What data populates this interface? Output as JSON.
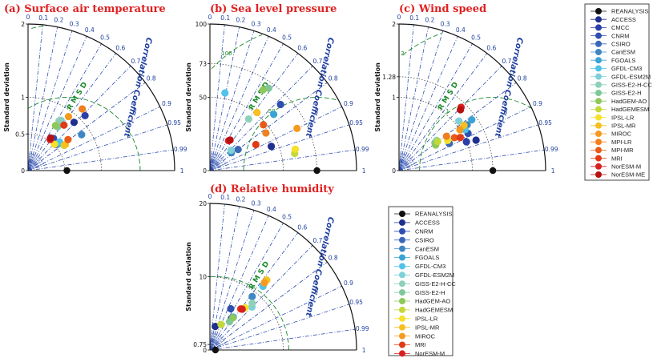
{
  "rmsd_label": "R M S D",
  "corr_label": "Correlation Coefficient",
  "y_label": "Standard deviation",
  "legend1": [
    {
      "name": "REANALYSIS",
      "color": "#111111"
    },
    {
      "name": "ACCESS",
      "color": "#1f2f8f"
    },
    {
      "name": "CMCC",
      "color": "#2a3fa8"
    },
    {
      "name": "CNRM",
      "color": "#2f4fb0"
    },
    {
      "name": "CSIRO",
      "color": "#3a67b8"
    },
    {
      "name": "CanESM",
      "color": "#3f86c4"
    },
    {
      "name": "FGOALS",
      "color": "#3aa3d6"
    },
    {
      "name": "GFDL-CM3",
      "color": "#4fc3e8"
    },
    {
      "name": "GFDL-ESM2M",
      "color": "#7fd0d8"
    },
    {
      "name": "GISS-E2-H-CC",
      "color": "#8fd0b8"
    },
    {
      "name": "GISS-E2-H",
      "color": "#7fc79a"
    },
    {
      "name": "HadGEM-AO",
      "color": "#8ec85a"
    },
    {
      "name": "HadGEMESM",
      "color": "#c4d83a"
    },
    {
      "name": "IPSL-LR",
      "color": "#f5e02a"
    },
    {
      "name": "IPSL-MR",
      "color": "#f7c020"
    },
    {
      "name": "MIROC",
      "color": "#f59a20"
    },
    {
      "name": "MPI-LR",
      "color": "#f08020"
    },
    {
      "name": "MPI-MR",
      "color": "#e85a18"
    },
    {
      "name": "MRI",
      "color": "#e03a18"
    },
    {
      "name": "NorESM-M",
      "color": "#d82020"
    },
    {
      "name": "NorESM-ME",
      "color": "#b81010"
    }
  ],
  "legend2": [
    {
      "name": "REANALYSIS",
      "color": "#111111"
    },
    {
      "name": "ACCESS",
      "color": "#1f2f8f"
    },
    {
      "name": "CNRM",
      "color": "#2f4fb0"
    },
    {
      "name": "CSIRO",
      "color": "#3a67b8"
    },
    {
      "name": "CanESM",
      "color": "#3f86c4"
    },
    {
      "name": "FGOALS",
      "color": "#3aa3d6"
    },
    {
      "name": "GFDL-CM3",
      "color": "#4fc3e8"
    },
    {
      "name": "GFDL-ESM2M",
      "color": "#7fd0d8"
    },
    {
      "name": "GISS-E2-H-CC",
      "color": "#8fd0b8"
    },
    {
      "name": "GISS-E2-H",
      "color": "#7fc79a"
    },
    {
      "name": "HadGEM-AO",
      "color": "#8ec85a"
    },
    {
      "name": "HadGEMESM",
      "color": "#c4d83a"
    },
    {
      "name": "IPSL-LR",
      "color": "#f5e02a"
    },
    {
      "name": "IPSL-MR",
      "color": "#f7c020"
    },
    {
      "name": "MIROC",
      "color": "#f59a20"
    },
    {
      "name": "MRI",
      "color": "#e03a18"
    },
    {
      "name": "NorESM-M",
      "color": "#d82020"
    }
  ],
  "chart_data": [
    {
      "type": "scatter",
      "title": "(a) Surface air temperature",
      "sd_max": 2,
      "sd_ticks": [
        "0",
        "0.5",
        "1",
        "2"
      ],
      "sd_tick_values": [
        0,
        0.5,
        1,
        2
      ],
      "corr_ticks": [
        0,
        0.1,
        0.2,
        0.3,
        0.4,
        0.5,
        0.6,
        0.7,
        0.8,
        0.9,
        0.95,
        0.99,
        1
      ],
      "ref_sd": 0.53,
      "rmsd_labels": [
        "1",
        "2"
      ],
      "rmsd_values": [
        1,
        2
      ],
      "points": [
        {
          "name": "ACCESS",
          "sd": 0.91,
          "r": 0.69
        },
        {
          "name": "CMCC",
          "sd": 1.08,
          "r": 0.72
        },
        {
          "name": "CNRM",
          "sd": 0.56,
          "r": 0.62
        },
        {
          "name": "CSIRO",
          "sd": 0.52,
          "r": 0.73
        },
        {
          "name": "CanESM",
          "sd": 0.88,
          "r": 0.83
        },
        {
          "name": "FGOALS",
          "sd": 0.56,
          "r": 0.75
        },
        {
          "name": "GFDL-CM3",
          "sd": 0.58,
          "r": 0.74
        },
        {
          "name": "GFDL-ESM2M",
          "sd": 0.82,
          "r": 0.55
        },
        {
          "name": "GISS-E2-H-CC",
          "sd": 0.8,
          "r": 0.53
        },
        {
          "name": "GISS-E2-H",
          "sd": 0.72,
          "r": 0.56
        },
        {
          "name": "HadGEM-AO",
          "sd": 0.72,
          "r": 0.52
        },
        {
          "name": "HadGEMESM",
          "sd": 0.6,
          "r": 0.82
        },
        {
          "name": "IPSL-LR",
          "sd": 0.51,
          "r": 0.71
        },
        {
          "name": "IPSL-MR",
          "sd": 0.62,
          "r": 0.82
        },
        {
          "name": "MIROC",
          "sd": 0.92,
          "r": 0.6
        },
        {
          "name": "MPI-LR",
          "sd": 1.12,
          "r": 0.66
        },
        {
          "name": "MPI-MR",
          "sd": 0.69,
          "r": 0.79
        },
        {
          "name": "MRI",
          "sd": 0.79,
          "r": 0.62
        },
        {
          "name": "NorESM-M",
          "sd": 0.52,
          "r": 0.58
        },
        {
          "name": "NorESM-ME",
          "sd": 0.54,
          "r": 0.57
        }
      ]
    },
    {
      "type": "scatter",
      "title": "(b) Sea level pressure",
      "sd_max": 100,
      "sd_ticks": [
        "0",
        "50",
        "73",
        "100"
      ],
      "sd_tick_values": [
        0,
        50,
        73,
        100
      ],
      "corr_ticks": [
        0,
        0.1,
        0.2,
        0.3,
        0.4,
        0.5,
        0.6,
        0.7,
        0.8,
        0.9,
        0.95,
        0.99,
        1
      ],
      "ref_sd": 73,
      "rmsd_labels": [
        "50",
        "100"
      ],
      "rmsd_values": [
        50,
        100
      ],
      "points": [
        {
          "name": "ACCESS",
          "sd": 45,
          "r": 0.93
        },
        {
          "name": "CNRM",
          "sd": 66,
          "r": 0.73
        },
        {
          "name": "CSIRO",
          "sd": 24,
          "r": 0.8
        },
        {
          "name": "CanESM",
          "sd": 19,
          "r": 0.77
        },
        {
          "name": "FGOALS",
          "sd": 58,
          "r": 0.75
        },
        {
          "name": "GFDL-CM3",
          "sd": 54,
          "r": 0.19
        },
        {
          "name": "GFDL-ESM2M",
          "sd": 20,
          "r": 0.72
        },
        {
          "name": "GISS-E2-H-CC",
          "sd": 44,
          "r": 0.6
        },
        {
          "name": "GISS-E2-H",
          "sd": 69,
          "r": 0.58
        },
        {
          "name": "HadGEM-AO",
          "sd": 66,
          "r": 0.55
        },
        {
          "name": "HadGEMESM",
          "sd": 59,
          "r": 0.98
        },
        {
          "name": "IPSL-LR",
          "sd": 60,
          "r": 0.97
        },
        {
          "name": "IPSL-MR",
          "sd": 51,
          "r": 0.63
        },
        {
          "name": "MIROC",
          "sd": 66,
          "r": 0.9
        },
        {
          "name": "MPI-LR",
          "sd": 46,
          "r": 0.83
        },
        {
          "name": "MPI-MR",
          "sd": 48,
          "r": 0.76
        },
        {
          "name": "MRI",
          "sd": 36,
          "r": 0.87
        },
        {
          "name": "NorESM-M",
          "sd": 24,
          "r": 0.53
        },
        {
          "name": "NorESM-ME",
          "sd": 25,
          "r": 0.55
        }
      ]
    },
    {
      "type": "scatter",
      "title": "(c) Wind speed",
      "sd_max": 2,
      "sd_ticks": [
        "0",
        "1",
        "1.28",
        "2"
      ],
      "sd_tick_values": [
        0,
        1,
        1.28,
        2
      ],
      "corr_ticks": [
        0,
        0.1,
        0.2,
        0.3,
        0.4,
        0.5,
        0.6,
        0.7,
        0.8,
        0.9,
        0.95,
        0.99,
        1
      ],
      "ref_sd": 1.28,
      "rmsd_labels": [
        "1",
        "2"
      ],
      "rmsd_values": [
        1,
        2
      ],
      "points": [
        {
          "name": "ACCESS",
          "sd": 1.13,
          "r": 0.93
        },
        {
          "name": "CMCC",
          "sd": 1.0,
          "r": 0.92
        },
        {
          "name": "CNRM",
          "sd": 1.07,
          "r": 0.88
        },
        {
          "name": "CSIRO",
          "sd": 0.78,
          "r": 0.88
        },
        {
          "name": "CanESM",
          "sd": 1.12,
          "r": 0.83
        },
        {
          "name": "FGOALS",
          "sd": 1.21,
          "r": 0.82
        },
        {
          "name": "GFDL-CM3",
          "sd": 1.06,
          "r": 0.85
        },
        {
          "name": "GFDL-ESM2M",
          "sd": 1.06,
          "r": 0.77
        },
        {
          "name": "GISS-E2-H-CC",
          "sd": 0.66,
          "r": 0.78
        },
        {
          "name": "GISS-E2-H",
          "sd": 0.62,
          "r": 0.79
        },
        {
          "name": "HadGEM-AO",
          "sd": 0.61,
          "r": 0.82
        },
        {
          "name": "HadGEMESM",
          "sd": 0.66,
          "r": 0.8
        },
        {
          "name": "IPSL-LR",
          "sd": 0.78,
          "r": 0.85
        },
        {
          "name": "IPSL-MR",
          "sd": 1.08,
          "r": 0.82
        },
        {
          "name": "MIROC",
          "sd": 1.0,
          "r": 0.83
        },
        {
          "name": "MPI-LR",
          "sd": 0.8,
          "r": 0.81
        },
        {
          "name": "MPI-MR",
          "sd": 0.88,
          "r": 0.86
        },
        {
          "name": "MRI",
          "sd": 0.95,
          "r": 0.88
        },
        {
          "name": "NorESM-M",
          "sd": 1.21,
          "r": 0.7
        },
        {
          "name": "NorESM-ME",
          "sd": 1.18,
          "r": 0.71
        }
      ]
    },
    {
      "type": "scatter",
      "title": "(d) Relative humidity",
      "sd_max": 20,
      "sd_ticks": [
        "0",
        "0.75",
        "10",
        "20"
      ],
      "sd_tick_values": [
        0,
        0.75,
        10,
        20
      ],
      "corr_ticks": [
        0,
        0.1,
        0.2,
        0.3,
        0.4,
        0.5,
        0.6,
        0.7,
        0.8,
        0.9,
        0.95,
        0.99,
        1
      ],
      "ref_sd": 0.75,
      "rmsd_labels": [
        "10",
        "20"
      ],
      "rmsd_values": [
        10,
        20
      ],
      "points": [
        {
          "name": "ACCESS",
          "sd": 3.3,
          "r": 0.22
        },
        {
          "name": "CNRM",
          "sd": 6.3,
          "r": 0.45
        },
        {
          "name": "CSIRO",
          "sd": 5.2,
          "r": 0.56
        },
        {
          "name": "CanESM",
          "sd": 9.3,
          "r": 0.62
        },
        {
          "name": "FGOALS",
          "sd": 5.5,
          "r": 0.58
        },
        {
          "name": "GFDL-CM3",
          "sd": 11.3,
          "r": 0.64
        },
        {
          "name": "GFDL-ESM2M",
          "sd": 8.2,
          "r": 0.7
        },
        {
          "name": "GISS-E2-H-CC",
          "sd": 8.6,
          "r": 0.67
        },
        {
          "name": "GISS-E2-H",
          "sd": 4.7,
          "r": 0.57
        },
        {
          "name": "HadGEM-AO",
          "sd": 5.4,
          "r": 0.58
        },
        {
          "name": "HadGEMESM",
          "sd": 3.8,
          "r": 0.4
        },
        {
          "name": "IPSL-LR",
          "sd": 7.5,
          "r": 0.64
        },
        {
          "name": "IPSL-MR",
          "sd": 12.3,
          "r": 0.63
        },
        {
          "name": "MIROC",
          "sd": 11.8,
          "r": 0.63
        },
        {
          "name": "MRI",
          "sd": 7.0,
          "r": 0.6
        },
        {
          "name": "NorESM-M",
          "sd": 7.1,
          "r": 0.62
        }
      ]
    }
  ]
}
